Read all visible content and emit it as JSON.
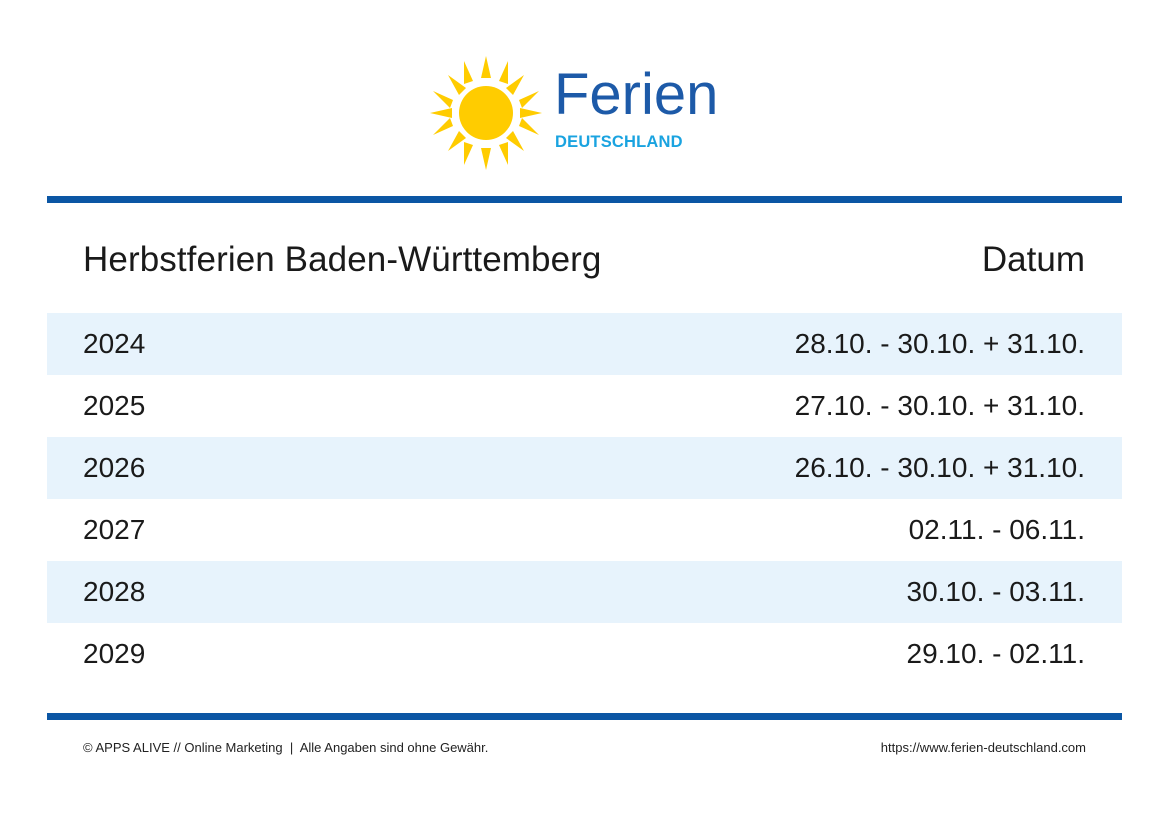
{
  "brand": {
    "name": "Ferien",
    "subtitle": "DEUTSCHLAND",
    "colors": {
      "wordmark": "#1d5aa8",
      "subtitle": "#1aa3e0",
      "sun": "#ffcc00",
      "rule": "#0b56a4",
      "row_shade": "#e7f3fc"
    }
  },
  "table": {
    "title": "Herbstferien Baden-Württemberg",
    "date_header": "Datum",
    "rows": [
      {
        "year": "2024",
        "date": "28.10. - 30.10. + 31.10."
      },
      {
        "year": "2025",
        "date": "27.10. - 30.10. + 31.10."
      },
      {
        "year": "2026",
        "date": "26.10. - 30.10. + 31.10."
      },
      {
        "year": "2027",
        "date": "02.11. - 06.11."
      },
      {
        "year": "2028",
        "date": "30.10. - 03.11."
      },
      {
        "year": "2029",
        "date": "29.10. - 02.11."
      }
    ]
  },
  "footer": {
    "left": "© APPS ALIVE // Online Marketing  |  Alle Angaben sind ohne Gewähr.",
    "right": "https://www.ferien-deutschland.com"
  }
}
